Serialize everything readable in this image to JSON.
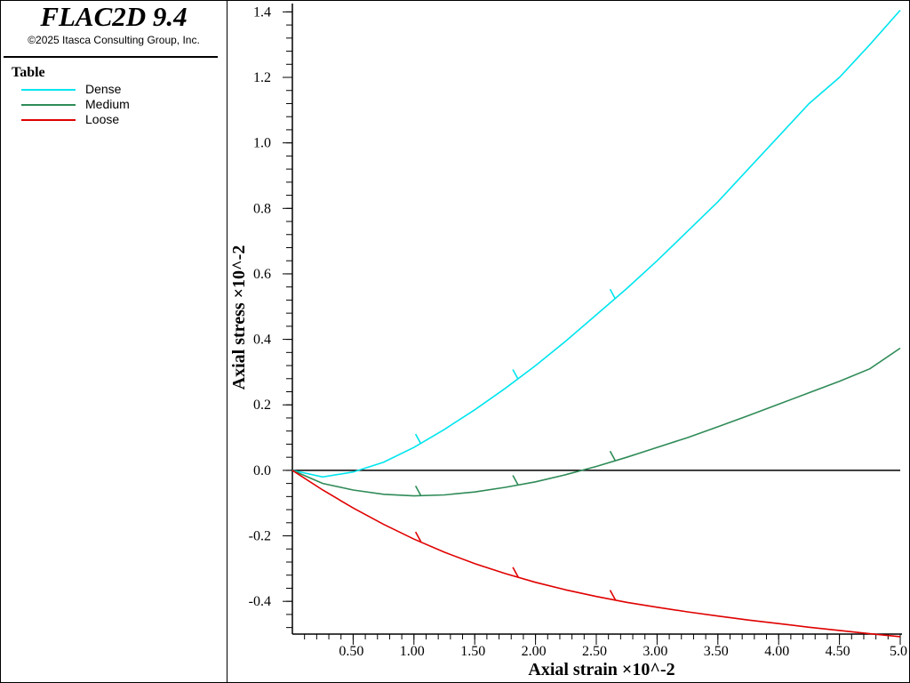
{
  "header": {
    "app_title": "FLAC2D 9.4",
    "copyright": "©2025 Itasca Consulting Group, Inc."
  },
  "legend": {
    "heading": "Table"
  },
  "chart_data": {
    "type": "line",
    "title": "",
    "xlabel": "Axial strain ×10^-2",
    "ylabel": "Axial stress ×10^-2",
    "xlim": [
      0.0,
      5.0
    ],
    "ylim": [
      -0.5,
      1.42
    ],
    "x_ticks": [
      0.5,
      1.0,
      1.5,
      2.0,
      2.5,
      3.0,
      3.5,
      4.0,
      4.5,
      5.0
    ],
    "x_tick_labels": [
      "0.50",
      "1.00",
      "1.50",
      "2.00",
      "2.50",
      "3.00",
      "3.50",
      "4.00",
      "4.50",
      "5.0"
    ],
    "y_ticks": [
      -0.4,
      -0.2,
      0.0,
      0.2,
      0.4,
      0.6,
      0.8,
      1.0,
      1.2,
      1.4
    ],
    "y_tick_labels": [
      "-0.4",
      "-0.2",
      "0.0",
      "0.2",
      "0.4",
      "0.6",
      "0.8",
      "1.0",
      "1.2",
      "1.4"
    ],
    "zero_line": true,
    "grid": false,
    "legend_placement": "left panel",
    "series": [
      {
        "name": "Dense",
        "color": "#00e5ee",
        "x": [
          0.0,
          0.25,
          0.5,
          0.75,
          1.0,
          1.25,
          1.5,
          1.75,
          2.0,
          2.25,
          2.5,
          2.75,
          3.0,
          3.25,
          3.5,
          3.75,
          4.0,
          4.25,
          4.5,
          4.75,
          5.0
        ],
        "y": [
          0.0,
          -0.02,
          -0.005,
          0.025,
          0.07,
          0.125,
          0.185,
          0.25,
          0.32,
          0.395,
          0.475,
          0.555,
          0.64,
          0.73,
          0.82,
          0.92,
          1.02,
          1.12,
          1.2,
          1.3,
          1.405
        ],
        "markers_x": [
          1.05,
          1.85,
          2.65
        ]
      },
      {
        "name": "Medium",
        "color": "#2e8b57",
        "x": [
          0.0,
          0.25,
          0.5,
          0.75,
          1.0,
          1.25,
          1.5,
          1.75,
          2.0,
          2.25,
          2.5,
          2.75,
          3.0,
          3.25,
          3.5,
          3.75,
          4.0,
          4.25,
          4.5,
          4.75,
          5.0
        ],
        "y": [
          0.0,
          -0.04,
          -0.06,
          -0.073,
          -0.078,
          -0.075,
          -0.066,
          -0.052,
          -0.035,
          -0.013,
          0.012,
          0.04,
          0.07,
          0.1,
          0.133,
          0.167,
          0.202,
          0.237,
          0.272,
          0.31,
          0.373
        ],
        "markers_x": [
          1.05,
          1.85,
          2.65
        ]
      },
      {
        "name": "Loose",
        "color": "#e00000",
        "x": [
          0.0,
          0.25,
          0.5,
          0.75,
          1.0,
          1.25,
          1.5,
          1.75,
          2.0,
          2.25,
          2.5,
          2.75,
          3.0,
          3.25,
          3.5,
          3.75,
          4.0,
          4.25,
          4.5,
          4.75,
          5.0
        ],
        "y": [
          0.0,
          -0.06,
          -0.115,
          -0.165,
          -0.21,
          -0.25,
          -0.285,
          -0.315,
          -0.342,
          -0.365,
          -0.385,
          -0.403,
          -0.418,
          -0.432,
          -0.445,
          -0.457,
          -0.468,
          -0.479,
          -0.489,
          -0.499,
          -0.508
        ],
        "markers_x": [
          1.05,
          1.85,
          2.65
        ]
      }
    ]
  }
}
